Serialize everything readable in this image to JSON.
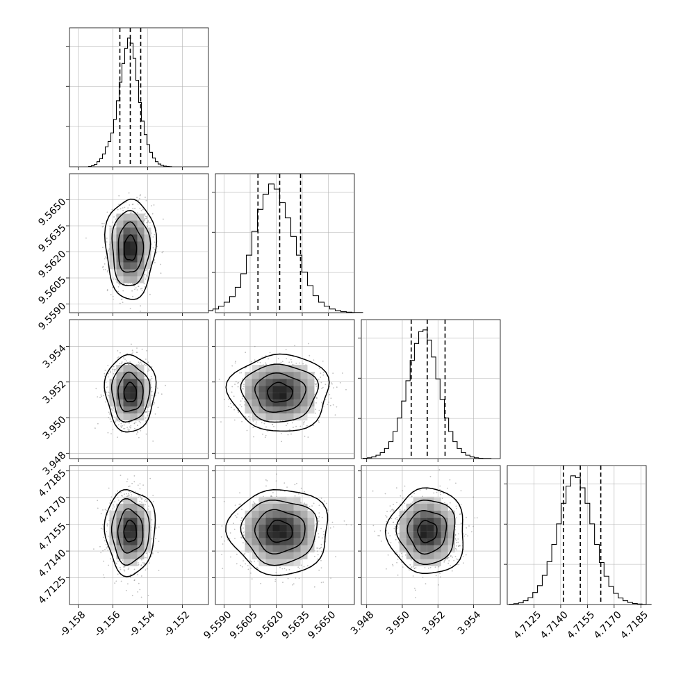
{
  "chart_data": {
    "type": "corner",
    "grid": true,
    "parameters": [
      {
        "index": 0,
        "range": [
          -9.1585,
          -9.1505
        ],
        "ticks": [
          "-9.158",
          "-9.156",
          "-9.154",
          "-9.152"
        ],
        "tick_values": [
          -9.158,
          -9.156,
          -9.154,
          -9.152
        ],
        "quantiles": [
          -9.1556,
          -9.155,
          -9.1544
        ],
        "median": -9.155,
        "sigma": 0.0006
      },
      {
        "index": 1,
        "range": [
          9.5585,
          9.5665
        ],
        "ticks": [
          "9.5590",
          "9.5605",
          "9.5620",
          "9.5635",
          "9.5650"
        ],
        "tick_values": [
          9.559,
          9.5605,
          9.562,
          9.5635,
          9.565
        ],
        "quantiles": [
          9.56095,
          9.5622,
          9.5634
        ],
        "median": 9.5622,
        "sigma": 0.0012
      },
      {
        "index": 2,
        "range": [
          3.9477,
          3.9555
        ],
        "ticks": [
          "3.948",
          "3.950",
          "3.952",
          "3.954"
        ],
        "tick_values": [
          3.948,
          3.95,
          3.952,
          3.954
        ],
        "quantiles": [
          3.9505,
          3.9514,
          3.9524
        ],
        "median": 3.9514,
        "sigma": 0.0009
      },
      {
        "index": 3,
        "range": [
          4.711,
          4.7188
        ],
        "ticks": [
          "4.7125",
          "4.7140",
          "4.7155",
          "4.7170",
          "4.7185"
        ],
        "tick_values": [
          4.7125,
          4.714,
          4.7155,
          4.717,
          4.7185
        ],
        "quantiles": [
          4.71415,
          4.7151,
          4.71625
        ],
        "median": 4.7151,
        "sigma": 0.001
      }
    ],
    "histograms": [
      {
        "param": 0,
        "counts": [
          2,
          6,
          14,
          30,
          48,
          75,
          118,
          150,
          200,
          280,
          390,
          500,
          610,
          700,
          760,
          730,
          640,
          510,
          380,
          270,
          190,
          130,
          85,
          52,
          30,
          16,
          8,
          4,
          2,
          1
        ]
      },
      {
        "param": 1,
        "counts": [
          3,
          6,
          12,
          22,
          38,
          62,
          95,
          150,
          230,
          340,
          480,
          610,
          700,
          760,
          730,
          650,
          560,
          450,
          340,
          240,
          160,
          100,
          62,
          38,
          22,
          12,
          6,
          3,
          1,
          1
        ]
      },
      {
        "param": 2,
        "counts": [
          2,
          5,
          10,
          20,
          35,
          60,
          100,
          160,
          240,
          340,
          460,
          580,
          680,
          750,
          760,
          700,
          600,
          470,
          350,
          240,
          160,
          100,
          60,
          35,
          20,
          10,
          5,
          2,
          1,
          1
        ]
      },
      {
        "param": 3,
        "counts": [
          2,
          5,
          10,
          22,
          40,
          70,
          110,
          170,
          250,
          350,
          470,
          590,
          690,
          750,
          740,
          680,
          590,
          470,
          350,
          245,
          165,
          105,
          65,
          38,
          22,
          12,
          6,
          3,
          1,
          1
        ]
      }
    ],
    "pairs": [
      {
        "x": 0,
        "y": 1
      },
      {
        "x": 0,
        "y": 2
      },
      {
        "x": 1,
        "y": 2
      },
      {
        "x": 0,
        "y": 3
      },
      {
        "x": 1,
        "y": 3
      },
      {
        "x": 2,
        "y": 3
      }
    ],
    "contour_levels_sigma": [
      0.5,
      1.0,
      1.5,
      2.0
    ],
    "colors": {
      "line": "#000000",
      "grid": "#b0b0b0",
      "scatter": "#888888",
      "background": "#ffffff"
    }
  }
}
